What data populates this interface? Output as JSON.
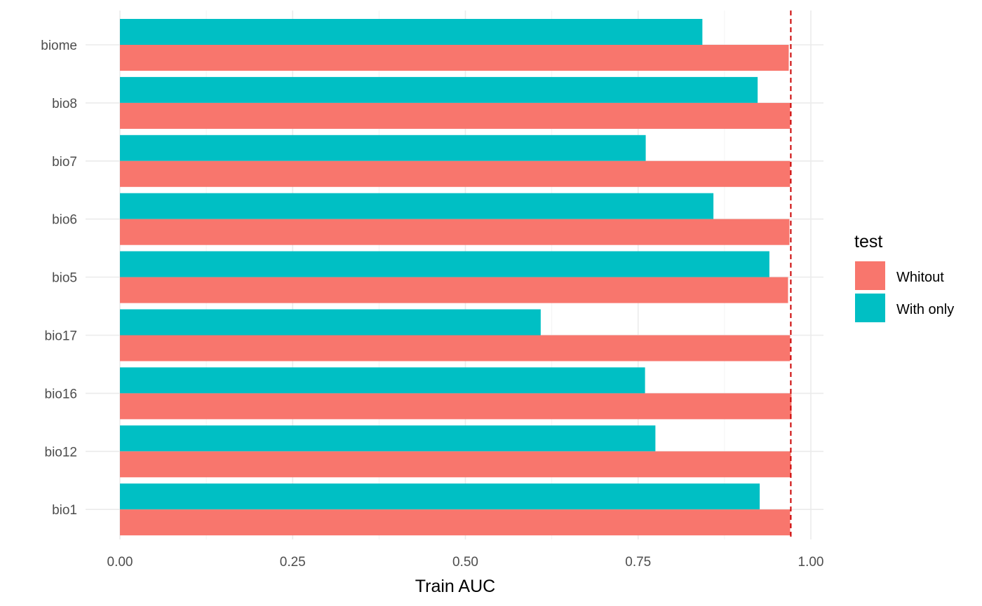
{
  "chart_data": {
    "type": "bar",
    "orientation": "horizontal",
    "categories": [
      "biome",
      "bio8",
      "bio7",
      "bio6",
      "bio5",
      "bio17",
      "bio16",
      "bio12",
      "bio1"
    ],
    "series": [
      {
        "name": "Whitout",
        "color": "#F8766D",
        "values": [
          0.968,
          0.97,
          0.97,
          0.969,
          0.967,
          0.97,
          0.972,
          0.971,
          0.97
        ]
      },
      {
        "name": "With only",
        "color": "#00BFC4",
        "values": [
          0.843,
          0.923,
          0.761,
          0.859,
          0.94,
          0.609,
          0.76,
          0.775,
          0.926
        ]
      }
    ],
    "xlabel": "Train AUC",
    "ylabel": "",
    "xlim": [
      0,
      1
    ],
    "x_ticks": [
      "0.00",
      "0.25",
      "0.50",
      "0.75",
      "1.00"
    ],
    "x_tick_values": [
      0,
      0.25,
      0.5,
      0.75,
      1.0
    ],
    "reference_line": {
      "x": 0.971,
      "style": "dashed",
      "color": "#CC0000"
    },
    "legend": {
      "title": "test",
      "position": "right"
    },
    "grid": true
  }
}
